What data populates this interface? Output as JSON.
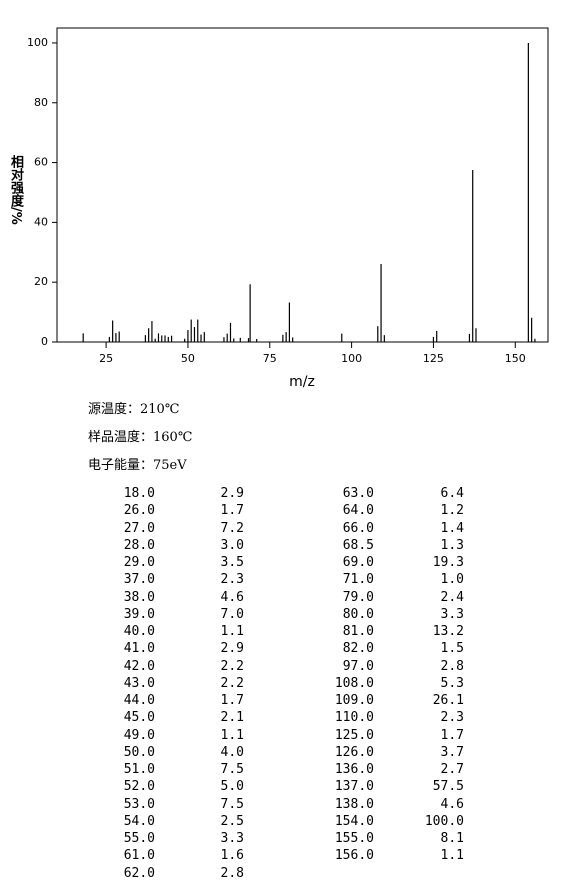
{
  "chart_data": {
    "type": "bar",
    "xlabel": "m/z",
    "ylabel": "相对强度/%",
    "x": [
      18,
      26,
      27,
      28,
      29,
      37,
      38,
      39,
      40,
      41,
      42,
      43,
      44,
      45,
      49,
      50,
      51,
      52,
      53,
      54,
      55,
      61,
      62,
      63,
      64,
      66,
      68.5,
      69,
      71,
      79,
      80,
      81,
      82,
      97,
      108,
      109,
      110,
      125,
      126,
      136,
      137,
      138,
      154,
      155,
      156
    ],
    "values": [
      2.9,
      1.7,
      7.2,
      3.0,
      3.5,
      2.3,
      4.6,
      7.0,
      1.1,
      2.9,
      2.2,
      2.2,
      1.7,
      2.1,
      1.1,
      4.0,
      7.5,
      5.0,
      7.5,
      2.5,
      3.3,
      1.6,
      2.8,
      6.4,
      1.2,
      1.4,
      1.3,
      19.3,
      1.0,
      2.4,
      3.3,
      13.2,
      1.5,
      2.8,
      5.3,
      26.1,
      2.3,
      1.7,
      3.7,
      2.7,
      57.5,
      4.6,
      100.0,
      8.1,
      1.1
    ],
    "color": "#000000",
    "xlim": [
      10,
      160
    ],
    "xticks": [
      25,
      50,
      75,
      100,
      125,
      150
    ],
    "ylim": [
      0,
      105
    ],
    "yticks": [
      0,
      20,
      40,
      60,
      80,
      100
    ]
  },
  "info": [
    "源温度：210℃",
    "样品温度：160℃",
    "电子能量：75eV"
  ],
  "table": {
    "left": [
      [
        "18.0",
        "2.9"
      ],
      [
        "26.0",
        "1.7"
      ],
      [
        "27.0",
        "7.2"
      ],
      [
        "28.0",
        "3.0"
      ],
      [
        "29.0",
        "3.5"
      ],
      [
        "37.0",
        "2.3"
      ],
      [
        "38.0",
        "4.6"
      ],
      [
        "39.0",
        "7.0"
      ],
      [
        "40.0",
        "1.1"
      ],
      [
        "41.0",
        "2.9"
      ],
      [
        "42.0",
        "2.2"
      ],
      [
        "43.0",
        "2.2"
      ],
      [
        "44.0",
        "1.7"
      ],
      [
        "45.0",
        "2.1"
      ],
      [
        "49.0",
        "1.1"
      ],
      [
        "50.0",
        "4.0"
      ],
      [
        "51.0",
        "7.5"
      ],
      [
        "52.0",
        "5.0"
      ],
      [
        "53.0",
        "7.5"
      ],
      [
        "54.0",
        "2.5"
      ],
      [
        "55.0",
        "3.3"
      ],
      [
        "61.0",
        "1.6"
      ],
      [
        "62.0",
        "2.8"
      ]
    ],
    "right": [
      [
        "63.0",
        "6.4"
      ],
      [
        "64.0",
        "1.2"
      ],
      [
        "66.0",
        "1.4"
      ],
      [
        "68.5",
        "1.3"
      ],
      [
        "69.0",
        "19.3"
      ],
      [
        "71.0",
        "1.0"
      ],
      [
        "79.0",
        "2.4"
      ],
      [
        "80.0",
        "3.3"
      ],
      [
        "81.0",
        "13.2"
      ],
      [
        "82.0",
        "1.5"
      ],
      [
        "97.0",
        "2.8"
      ],
      [
        "108.0",
        "5.3"
      ],
      [
        "109.0",
        "26.1"
      ],
      [
        "110.0",
        "2.3"
      ],
      [
        "125.0",
        "1.7"
      ],
      [
        "126.0",
        "3.7"
      ],
      [
        "136.0",
        "2.7"
      ],
      [
        "137.0",
        "57.5"
      ],
      [
        "138.0",
        "4.6"
      ],
      [
        "154.0",
        "100.0"
      ],
      [
        "155.0",
        "8.1"
      ],
      [
        "156.0",
        "1.1"
      ]
    ]
  }
}
